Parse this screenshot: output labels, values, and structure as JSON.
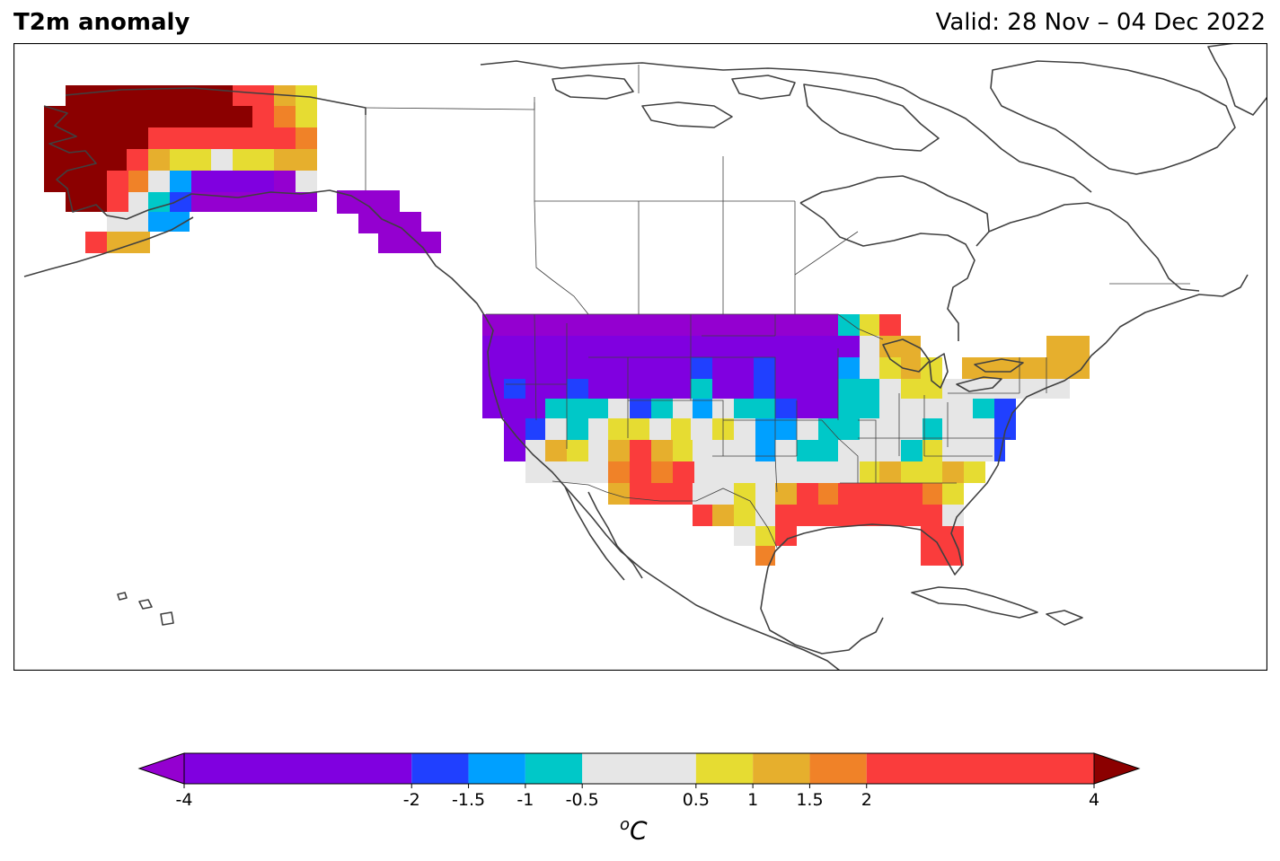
{
  "header": {
    "title": "T2m anomaly",
    "valid": "Valid: 28 Nov – 04 Dec 2022"
  },
  "legend": {
    "unit_sup": "o",
    "unit_main": "C",
    "ticks": [
      "-4",
      "-2",
      "-1.5",
      "-1",
      "-0.5",
      "0.5",
      "1",
      "1.5",
      "2",
      "4"
    ],
    "tick_values": [
      -4,
      -2,
      -1.5,
      -1,
      -0.5,
      0.5,
      1,
      1.5,
      2,
      4
    ],
    "bins": [
      {
        "from": -4,
        "to": -2,
        "color": "#8000e0"
      },
      {
        "from": -2,
        "to": -1.5,
        "color": "#2040ff"
      },
      {
        "from": -1.5,
        "to": -1,
        "color": "#00a0ff"
      },
      {
        "from": -1,
        "to": -0.5,
        "color": "#00c8c8"
      },
      {
        "from": -0.5,
        "to": 0.5,
        "color": "#e6e6e6"
      },
      {
        "from": 0.5,
        "to": 1,
        "color": "#e6dc32"
      },
      {
        "from": 1,
        "to": 1.5,
        "color": "#e6af2d"
      },
      {
        "from": 1.5,
        "to": 2,
        "color": "#f08228"
      },
      {
        "from": 2,
        "to": 4,
        "color": "#fa3c3c"
      }
    ],
    "under_color": "#9400d0",
    "over_color": "#8b0000"
  },
  "colors": {
    "coastline": "#404040",
    "border": "#404040"
  }
}
